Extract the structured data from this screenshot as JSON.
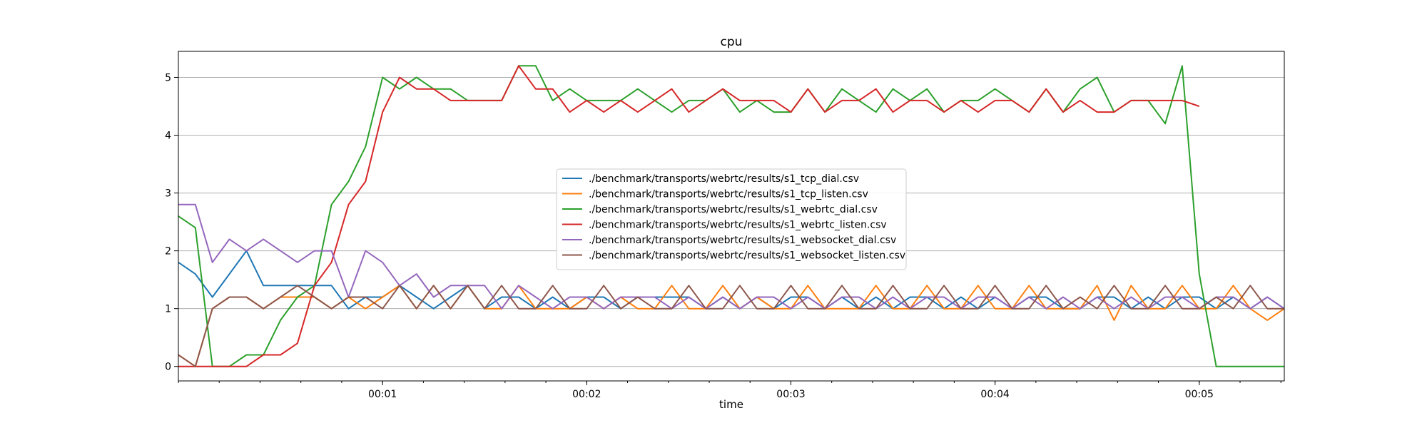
{
  "chart_data": {
    "type": "line",
    "title": "cpu",
    "xlabel": "time",
    "ylabel": "",
    "xlim": [
      0,
      65
    ],
    "ylim": [
      -0.25,
      5.45
    ],
    "yticks": [
      0,
      1,
      2,
      3,
      4,
      5
    ],
    "ytick_labels": [
      "0",
      "1",
      "2",
      "3",
      "4",
      "5"
    ],
    "xticks": [
      12,
      24,
      36,
      48,
      60
    ],
    "xtick_labels": [
      "00:01",
      "00:02",
      "00:03",
      "00:04",
      "00:05"
    ],
    "grid": "y",
    "legend_position": "center",
    "x_unit_note": "",
    "series": [
      {
        "name": "./benchmark/transports/webrtc/results/s1_tcp_dial.csv",
        "color": "#1f77b4",
        "values": [
          1.8,
          1.6,
          1.2,
          1.6,
          2.0,
          1.4,
          1.4,
          1.4,
          1.4,
          1.4,
          1.0,
          1.2,
          1.2,
          1.4,
          1.2,
          1.0,
          1.2,
          1.4,
          1.0,
          1.2,
          1.2,
          1.0,
          1.2,
          1.0,
          1.2,
          1.2,
          1.0,
          1.2,
          1.2,
          1.2,
          1.2,
          1.0,
          1.2,
          1.0,
          1.2,
          1.0,
          1.2,
          1.2,
          1.0,
          1.2,
          1.0,
          1.2,
          1.0,
          1.2,
          1.2,
          1.0,
          1.2,
          1.0,
          1.2,
          1.0,
          1.2,
          1.2,
          1.0,
          1.0,
          1.2,
          1.2,
          1.0,
          1.2,
          1.0,
          1.2,
          1.2,
          1.0,
          1.2,
          1.0,
          1.2,
          1.0
        ]
      },
      {
        "name": "./benchmark/transports/webrtc/results/s1_tcp_listen.csv",
        "color": "#ff7f0e",
        "values": [
          0.2,
          0.0,
          1.0,
          1.2,
          1.2,
          1.0,
          1.2,
          1.2,
          1.2,
          1.0,
          1.2,
          1.0,
          1.2,
          1.4,
          1.0,
          1.4,
          1.0,
          1.4,
          1.0,
          1.0,
          1.4,
          1.0,
          1.0,
          1.0,
          1.2,
          1.0,
          1.2,
          1.0,
          1.0,
          1.4,
          1.0,
          1.0,
          1.4,
          1.0,
          1.2,
          1.0,
          1.0,
          1.4,
          1.0,
          1.0,
          1.0,
          1.4,
          1.0,
          1.0,
          1.4,
          1.0,
          1.0,
          1.4,
          1.0,
          1.0,
          1.4,
          1.0,
          1.0,
          1.0,
          1.4,
          0.8,
          1.4,
          1.0,
          1.0,
          1.4,
          1.0,
          1.0,
          1.4,
          1.0,
          0.8,
          1.0
        ]
      },
      {
        "name": "./benchmark/transports/webrtc/results/s1_webrtc_dial.csv",
        "color": "#2ca02c",
        "values": [
          2.6,
          2.4,
          0.0,
          0.0,
          0.2,
          0.2,
          0.8,
          1.2,
          1.4,
          2.8,
          3.2,
          3.8,
          5.0,
          4.8,
          5.0,
          4.8,
          4.8,
          4.6,
          4.6,
          4.6,
          5.2,
          5.2,
          4.6,
          4.8,
          4.6,
          4.6,
          4.6,
          4.8,
          4.6,
          4.4,
          4.6,
          4.6,
          4.8,
          4.4,
          4.6,
          4.4,
          4.4,
          4.8,
          4.4,
          4.8,
          4.6,
          4.4,
          4.8,
          4.6,
          4.8,
          4.4,
          4.6,
          4.6,
          4.8,
          4.6,
          4.4,
          4.8,
          4.4,
          4.8,
          5.0,
          4.4,
          4.6,
          4.6,
          4.2,
          5.2,
          1.6,
          0.0,
          0.0,
          0.0,
          0.0,
          0.0
        ]
      },
      {
        "name": "./benchmark/transports/webrtc/results/s1_webrtc_listen.csv",
        "color": "#d62728",
        "values": [
          0.0,
          0.0,
          0.0,
          0.0,
          0.0,
          0.2,
          0.2,
          0.4,
          1.4,
          1.8,
          2.8,
          3.2,
          4.4,
          5.0,
          4.8,
          4.8,
          4.6,
          4.6,
          4.6,
          4.6,
          5.2,
          4.8,
          4.8,
          4.4,
          4.6,
          4.4,
          4.6,
          4.4,
          4.6,
          4.8,
          4.4,
          4.6,
          4.8,
          4.6,
          4.6,
          4.6,
          4.4,
          4.8,
          4.4,
          4.6,
          4.6,
          4.8,
          4.4,
          4.6,
          4.6,
          4.4,
          4.6,
          4.4,
          4.6,
          4.6,
          4.4,
          4.8,
          4.4,
          4.6,
          4.4,
          4.4,
          4.6,
          4.6,
          4.6,
          4.6,
          4.5
        ]
      },
      {
        "name": "./benchmark/transports/webrtc/results/s1_websocket_dial.csv",
        "color": "#9467bd",
        "values": [
          2.8,
          2.8,
          1.8,
          2.2,
          2.0,
          2.2,
          2.0,
          1.8,
          2.0,
          2.0,
          1.2,
          2.0,
          1.8,
          1.4,
          1.6,
          1.2,
          1.4,
          1.4,
          1.4,
          1.0,
          1.4,
          1.2,
          1.0,
          1.2,
          1.2,
          1.0,
          1.2,
          1.2,
          1.2,
          1.0,
          1.2,
          1.0,
          1.2,
          1.0,
          1.2,
          1.2,
          1.0,
          1.2,
          1.0,
          1.2,
          1.2,
          1.0,
          1.2,
          1.0,
          1.2,
          1.2,
          1.0,
          1.2,
          1.2,
          1.0,
          1.2,
          1.0,
          1.2,
          1.0,
          1.2,
          1.0,
          1.2,
          1.0,
          1.2,
          1.2,
          1.0,
          1.2,
          1.2,
          1.0,
          1.2,
          1.0
        ]
      },
      {
        "name": "./benchmark/transports/webrtc/results/s1_websocket_listen.csv",
        "color": "#8c564b",
        "values": [
          0.2,
          0.0,
          1.0,
          1.2,
          1.2,
          1.0,
          1.2,
          1.4,
          1.2,
          1.0,
          1.2,
          1.2,
          1.0,
          1.4,
          1.0,
          1.4,
          1.0,
          1.4,
          1.0,
          1.4,
          1.0,
          1.0,
          1.4,
          1.0,
          1.0,
          1.4,
          1.0,
          1.2,
          1.0,
          1.0,
          1.4,
          1.0,
          1.0,
          1.4,
          1.0,
          1.0,
          1.4,
          1.0,
          1.0,
          1.4,
          1.0,
          1.0,
          1.4,
          1.0,
          1.0,
          1.4,
          1.0,
          1.0,
          1.4,
          1.0,
          1.0,
          1.4,
          1.0,
          1.2,
          1.0,
          1.4,
          1.0,
          1.0,
          1.4,
          1.0,
          1.0,
          1.2,
          1.0,
          1.4,
          1.0,
          1.0
        ]
      }
    ]
  }
}
